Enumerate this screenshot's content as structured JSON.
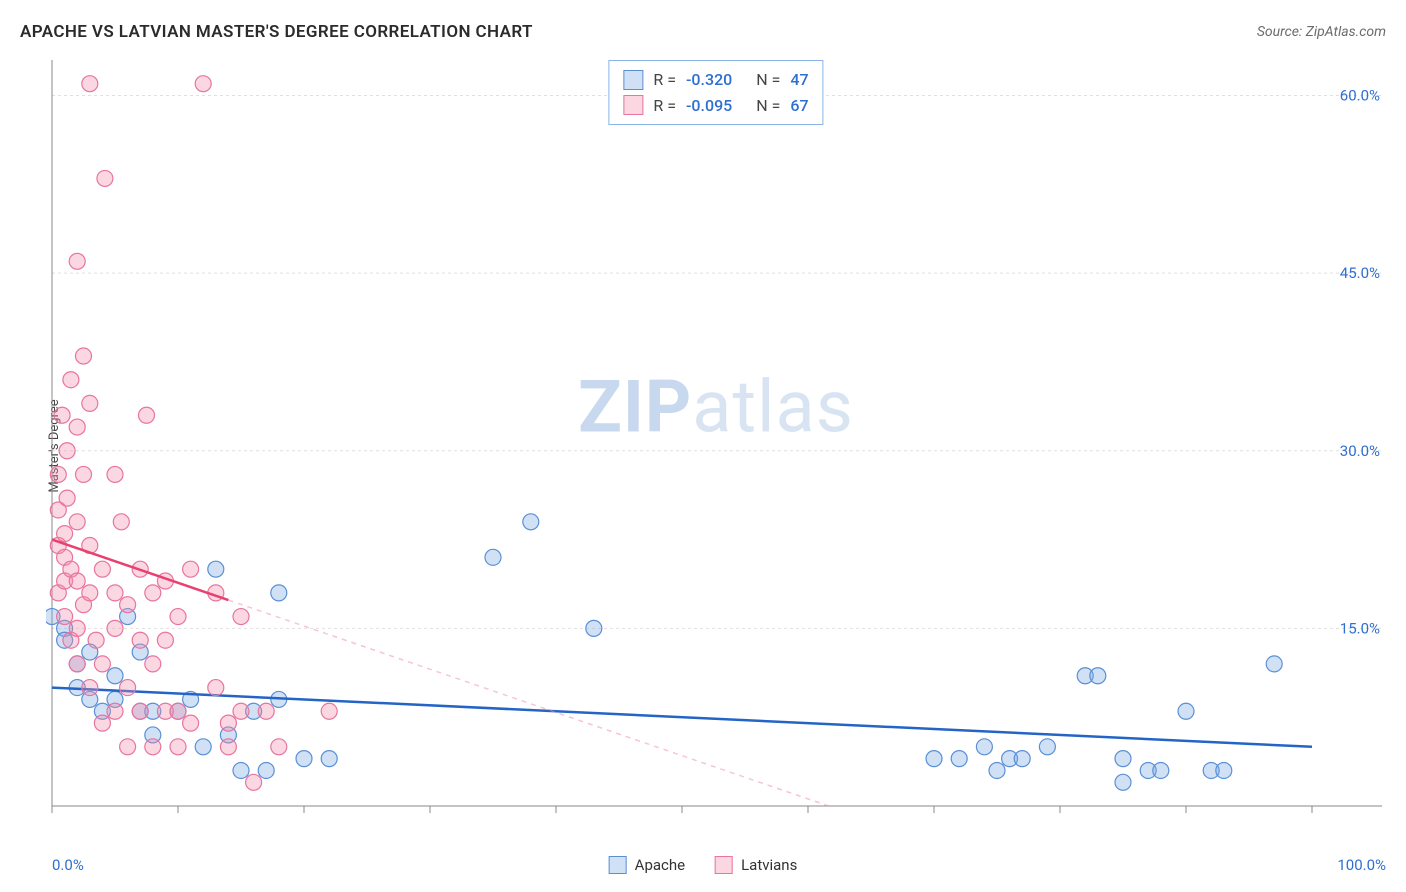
{
  "title": "APACHE VS LATVIAN MASTER'S DEGREE CORRELATION CHART",
  "source": "Source: ZipAtlas.com",
  "y_axis_label": "Master's Degree",
  "watermark_bold": "ZIP",
  "watermark_light": "atlas",
  "x_axis": {
    "min_label": "0.0%",
    "max_label": "100.0%",
    "min": 0,
    "max": 100,
    "tick_step": 10
  },
  "y_axis": {
    "ticks": [
      15.0,
      30.0,
      45.0,
      60.0
    ],
    "tick_labels": [
      "15.0%",
      "30.0%",
      "45.0%",
      "60.0%"
    ],
    "min": 0,
    "max": 63
  },
  "grid_color": "#e0e0e0",
  "axis_color": "#888888",
  "tick_color": "#888888",
  "y_label_color": "#2f6fd0",
  "series": [
    {
      "name": "Apache",
      "fill": "rgba(120,170,230,0.35)",
      "stroke": "#5a8fd6",
      "trend_solid_color": "#2564c7",
      "trend_dash_color": "rgba(120,170,230,0.4)",
      "marker_radius": 8,
      "R": "-0.320",
      "N": "47",
      "trend": {
        "y_at_x0": 10.0,
        "y_at_x100": 5.0,
        "solid_x_to": 100
      },
      "points": [
        [
          0,
          16
        ],
        [
          1,
          15
        ],
        [
          1,
          14
        ],
        [
          2,
          12
        ],
        [
          2,
          10
        ],
        [
          3,
          13
        ],
        [
          3,
          9
        ],
        [
          4,
          8
        ],
        [
          5,
          11
        ],
        [
          5,
          9
        ],
        [
          6,
          16
        ],
        [
          7,
          13
        ],
        [
          7,
          8
        ],
        [
          8,
          8
        ],
        [
          8,
          6
        ],
        [
          10,
          8
        ],
        [
          11,
          9
        ],
        [
          12,
          5
        ],
        [
          13,
          20
        ],
        [
          14,
          6
        ],
        [
          15,
          3
        ],
        [
          16,
          8
        ],
        [
          17,
          3
        ],
        [
          18,
          18
        ],
        [
          18,
          9
        ],
        [
          20,
          4
        ],
        [
          22,
          4
        ],
        [
          35,
          21
        ],
        [
          38,
          24
        ],
        [
          43,
          15
        ],
        [
          70,
          4
        ],
        [
          72,
          4
        ],
        [
          74,
          5
        ],
        [
          75,
          3
        ],
        [
          76,
          4
        ],
        [
          77,
          4
        ],
        [
          79,
          5
        ],
        [
          82,
          11
        ],
        [
          83,
          11
        ],
        [
          85,
          4
        ],
        [
          85,
          2
        ],
        [
          87,
          3
        ],
        [
          88,
          3
        ],
        [
          90,
          8
        ],
        [
          92,
          3
        ],
        [
          93,
          3
        ],
        [
          97,
          12
        ]
      ]
    },
    {
      "name": "Latvians",
      "fill": "rgba(240,140,170,0.35)",
      "stroke": "#e8749f",
      "trend_solid_color": "#e8416f",
      "trend_dash_color": "rgba(240,140,170,0.5)",
      "marker_radius": 8,
      "R": "-0.095",
      "N": "67",
      "trend": {
        "y_at_x0": 22.5,
        "y_at_x100": -14,
        "solid_x_to": 14
      },
      "points": [
        [
          0.5,
          28
        ],
        [
          0.5,
          25
        ],
        [
          0.5,
          22
        ],
        [
          0.5,
          18
        ],
        [
          0.8,
          33
        ],
        [
          1,
          16
        ],
        [
          1,
          23
        ],
        [
          1,
          21
        ],
        [
          1,
          19
        ],
        [
          1.2,
          30
        ],
        [
          1.2,
          26
        ],
        [
          1.5,
          36
        ],
        [
          1.5,
          20
        ],
        [
          1.5,
          14
        ],
        [
          2,
          46
        ],
        [
          2,
          32
        ],
        [
          2,
          24
        ],
        [
          2,
          19
        ],
        [
          2,
          15
        ],
        [
          2,
          12
        ],
        [
          2.5,
          38
        ],
        [
          2.5,
          28
        ],
        [
          2.5,
          17
        ],
        [
          3,
          34
        ],
        [
          3,
          22
        ],
        [
          3,
          18
        ],
        [
          3,
          10
        ],
        [
          3,
          61
        ],
        [
          3.5,
          14
        ],
        [
          4,
          20
        ],
        [
          4,
          12
        ],
        [
          4,
          7
        ],
        [
          4.2,
          53
        ],
        [
          5,
          18
        ],
        [
          5,
          15
        ],
        [
          5,
          8
        ],
        [
          5,
          28
        ],
        [
          5.5,
          24
        ],
        [
          6,
          17
        ],
        [
          6,
          10
        ],
        [
          6,
          5
        ],
        [
          7,
          20
        ],
        [
          7,
          14
        ],
        [
          7,
          8
        ],
        [
          7.5,
          33
        ],
        [
          8,
          18
        ],
        [
          8,
          12
        ],
        [
          8,
          5
        ],
        [
          9,
          19
        ],
        [
          9,
          14
        ],
        [
          9,
          8
        ],
        [
          10,
          16
        ],
        [
          10,
          8
        ],
        [
          10,
          5
        ],
        [
          11,
          20
        ],
        [
          11,
          7
        ],
        [
          12,
          61
        ],
        [
          13,
          18
        ],
        [
          13,
          10
        ],
        [
          14,
          7
        ],
        [
          14,
          5
        ],
        [
          15,
          16
        ],
        [
          15,
          8
        ],
        [
          16,
          2
        ],
        [
          17,
          8
        ],
        [
          18,
          5
        ],
        [
          22,
          8
        ]
      ]
    }
  ],
  "bottom_legend": [
    "Apache",
    "Latvians"
  ]
}
